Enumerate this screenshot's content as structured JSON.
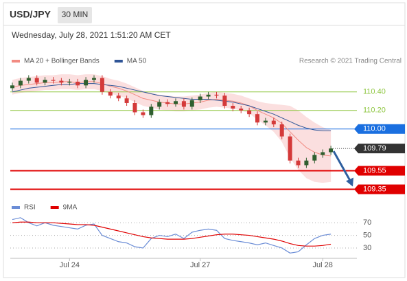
{
  "header": {
    "symbol": "USD/JPY",
    "interval": "30 MIN",
    "date": "Wednesday, July 28, 2021 1:51:20 AM CET"
  },
  "chart_data": [
    {
      "type": "candlestick",
      "credit": "Research © 2021 Trading Central",
      "up_color": "#2f5f2f",
      "down_color": "#d43a3a",
      "open": [
        110.44,
        110.47,
        110.52,
        110.55,
        110.5,
        110.53,
        110.52,
        110.5,
        110.51,
        110.47,
        110.53,
        110.55,
        110.4,
        110.36,
        110.33,
        110.28,
        110.18,
        110.15,
        110.24,
        110.29,
        110.27,
        110.3,
        110.24,
        110.31,
        110.35,
        110.37,
        110.36,
        110.25,
        110.22,
        110.2,
        110.16,
        110.07,
        110.09,
        110.05,
        109.92,
        109.66,
        109.61,
        109.66,
        109.72,
        109.75
      ],
      "high": [
        110.5,
        110.55,
        110.58,
        110.58,
        110.56,
        110.56,
        110.55,
        110.54,
        110.54,
        110.56,
        110.58,
        110.58,
        110.43,
        110.39,
        110.36,
        110.31,
        110.21,
        110.27,
        110.32,
        110.32,
        110.33,
        110.33,
        110.34,
        110.38,
        110.4,
        110.4,
        110.39,
        110.28,
        110.25,
        110.23,
        110.19,
        110.12,
        110.12,
        110.08,
        109.95,
        109.69,
        109.69,
        109.75,
        109.78,
        109.82
      ],
      "low": [
        110.41,
        110.44,
        110.49,
        110.47,
        110.47,
        110.49,
        110.47,
        110.47,
        110.44,
        110.44,
        110.5,
        110.37,
        110.33,
        110.3,
        110.25,
        110.15,
        110.12,
        110.12,
        110.21,
        110.24,
        110.24,
        110.21,
        110.21,
        110.28,
        110.32,
        110.33,
        110.22,
        110.19,
        110.17,
        110.13,
        110.04,
        110.04,
        110.02,
        109.89,
        109.63,
        109.58,
        109.58,
        109.63,
        109.69,
        109.72
      ],
      "close": [
        110.47,
        110.52,
        110.55,
        110.5,
        110.53,
        110.52,
        110.5,
        110.51,
        110.47,
        110.53,
        110.55,
        110.4,
        110.36,
        110.33,
        110.28,
        110.18,
        110.15,
        110.24,
        110.29,
        110.27,
        110.3,
        110.24,
        110.31,
        110.35,
        110.37,
        110.36,
        110.25,
        110.22,
        110.2,
        110.16,
        110.07,
        110.09,
        110.05,
        109.92,
        109.66,
        109.61,
        109.66,
        109.72,
        109.75,
        109.79
      ],
      "series": [
        {
          "name": "MA 20 + Bollinger Bands",
          "color": "#f28b82",
          "band_color": "#f8c9c9",
          "values": [
            110.45,
            110.47,
            110.48,
            110.49,
            110.5,
            110.5,
            110.51,
            110.51,
            110.5,
            110.51,
            110.51,
            110.49,
            110.46,
            110.44,
            110.41,
            110.37,
            110.33,
            110.31,
            110.29,
            110.28,
            110.27,
            110.27,
            110.28,
            110.29,
            110.31,
            110.32,
            110.31,
            110.3,
            110.28,
            110.25,
            110.2,
            110.16,
            110.12,
            110.06,
            109.97,
            109.88,
            109.8,
            109.75,
            109.72,
            109.71
          ],
          "upper": [
            110.53,
            110.55,
            110.56,
            110.57,
            110.58,
            110.58,
            110.59,
            110.59,
            110.58,
            110.59,
            110.59,
            110.57,
            110.54,
            110.52,
            110.49,
            110.45,
            110.41,
            110.39,
            110.37,
            110.36,
            110.35,
            110.35,
            110.36,
            110.37,
            110.39,
            110.4,
            110.39,
            110.38,
            110.36,
            110.33,
            110.3,
            110.28,
            110.27,
            110.26,
            110.25,
            110.2,
            110.13,
            110.07,
            110.02,
            109.99
          ],
          "lower": [
            110.37,
            110.39,
            110.4,
            110.41,
            110.42,
            110.42,
            110.43,
            110.43,
            110.42,
            110.43,
            110.43,
            110.41,
            110.38,
            110.36,
            110.33,
            110.29,
            110.25,
            110.23,
            110.21,
            110.2,
            110.19,
            110.19,
            110.2,
            110.21,
            110.23,
            110.24,
            110.23,
            110.22,
            110.2,
            110.17,
            110.1,
            110.04,
            109.97,
            109.86,
            109.69,
            109.56,
            109.47,
            109.43,
            109.42,
            109.43
          ]
        },
        {
          "name": "MA 50",
          "color": "#2f5597",
          "values": [
            110.4,
            110.42,
            110.44,
            110.45,
            110.46,
            110.47,
            110.48,
            110.48,
            110.49,
            110.49,
            110.49,
            110.48,
            110.47,
            110.46,
            110.44,
            110.42,
            110.4,
            110.38,
            110.36,
            110.35,
            110.34,
            110.33,
            110.32,
            110.32,
            110.32,
            110.31,
            110.3,
            110.29,
            110.27,
            110.25,
            110.22,
            110.19,
            110.16,
            110.12,
            110.08,
            110.04,
            110.01,
            109.99,
            109.98,
            109.98
          ]
        }
      ],
      "levels": [
        {
          "value": 110.4,
          "label": "110.40",
          "color": "#8dc63f",
          "style": "text"
        },
        {
          "value": 110.2,
          "label": "110.20",
          "color": "#8dc63f",
          "style": "text"
        },
        {
          "value": 110.0,
          "label": "110.00",
          "color": "#1a6fe0",
          "style": "box"
        },
        {
          "value": 109.79,
          "color": "#333333",
          "style": "dotted-box"
        },
        {
          "value": 109.55,
          "color": "#e00000",
          "style": "box"
        },
        {
          "value": 109.35,
          "color": "#e00000",
          "style": "box"
        }
      ],
      "forecast_color": "#2f5f9f",
      "ylim": [
        109.28,
        110.65
      ]
    },
    {
      "type": "line",
      "series": [
        {
          "name": "RSI",
          "color": "#6b8dd6",
          "values": [
            75,
            78,
            70,
            65,
            70,
            66,
            64,
            62,
            60,
            66,
            68,
            50,
            45,
            40,
            38,
            32,
            30,
            45,
            50,
            48,
            52,
            45,
            55,
            58,
            60,
            58,
            45,
            42,
            40,
            38,
            35,
            38,
            34,
            30,
            22,
            24,
            35,
            45,
            50,
            52
          ]
        },
        {
          "name": "9MA",
          "color": "#e00000",
          "values": [
            70,
            71,
            71,
            70,
            70,
            70,
            69,
            68,
            67,
            67,
            66,
            63,
            60,
            57,
            54,
            51,
            48,
            46,
            45,
            44,
            44,
            44,
            45,
            47,
            49,
            51,
            52,
            52,
            51,
            50,
            48,
            46,
            44,
            41,
            37,
            34,
            33,
            33,
            34,
            36
          ]
        }
      ],
      "ylim": [
        18,
        80
      ],
      "yticks": [
        70,
        50,
        30
      ],
      "xticks": [
        {
          "value": 7,
          "label": "Jul 24"
        },
        {
          "value": 23,
          "label": "Jul 27"
        },
        {
          "value": 38,
          "label": "Jul 28"
        }
      ]
    }
  ]
}
